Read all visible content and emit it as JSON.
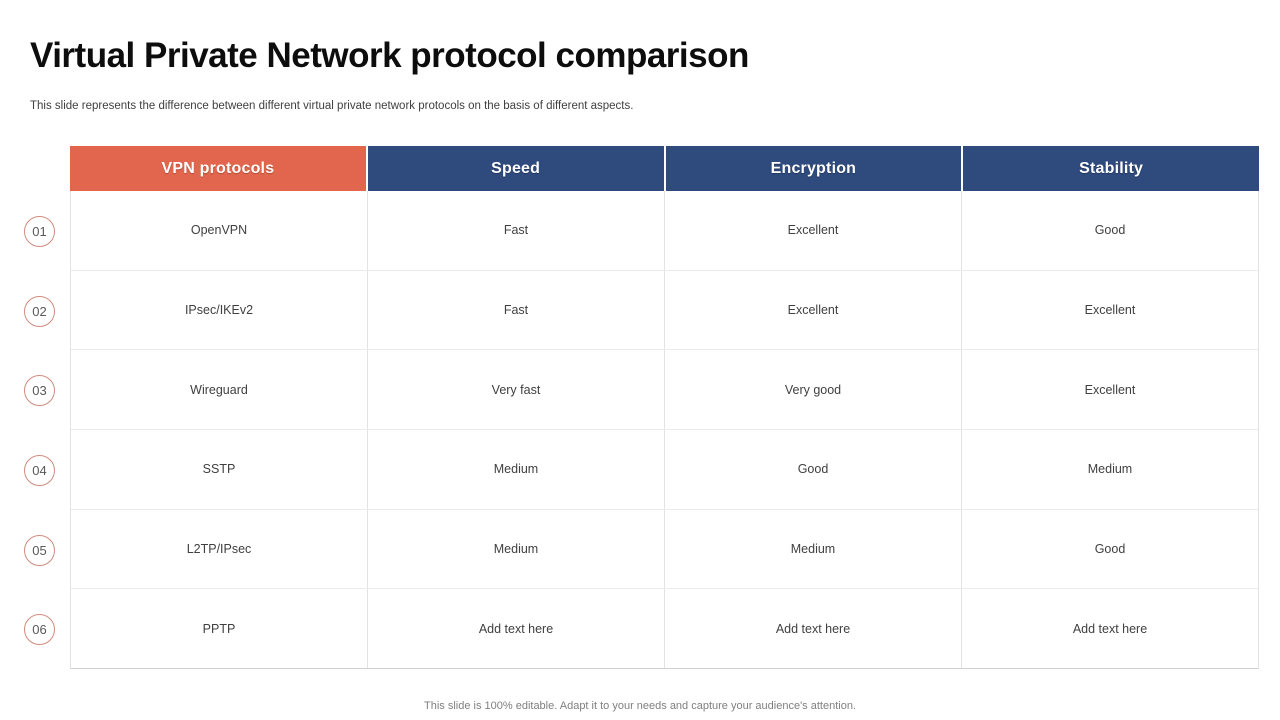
{
  "slide": {
    "title": "Virtual Private Network protocol comparison",
    "subtitle": "This slide represents the difference between  different virtual private network protocols on the basis of different aspects.",
    "footer": "This slide is 100% editable. Adapt it to your needs and capture your audience's attention."
  },
  "colors": {
    "protocol_header_bg": "#e2664d",
    "metric_header_bg": "#2f4a7d",
    "badge_outline": "#d08c7e",
    "grid_line": "#e3e3e3",
    "cell_text": "#404040",
    "footer_text": "#7f7f7f"
  },
  "table": {
    "headers": {
      "protocol": "VPN protocols",
      "speed": "Speed",
      "encryption": "Encryption",
      "stability": "Stability"
    },
    "rows": [
      {
        "num": "01",
        "protocol": "OpenVPN",
        "speed": "Fast",
        "encryption": "Excellent",
        "stability": "Good"
      },
      {
        "num": "02",
        "protocol": "IPsec/IKEv2",
        "speed": "Fast",
        "encryption": "Excellent",
        "stability": "Excellent"
      },
      {
        "num": "03",
        "protocol": "Wireguard",
        "speed": "Very fast",
        "encryption": "Very good",
        "stability": "Excellent"
      },
      {
        "num": "04",
        "protocol": "SSTP",
        "speed": "Medium",
        "encryption": "Good",
        "stability": "Medium"
      },
      {
        "num": "05",
        "protocol": "L2TP/IPsec",
        "speed": "Medium",
        "encryption": "Medium",
        "stability": "Good"
      },
      {
        "num": "06",
        "protocol": "PPTP",
        "speed": "Add text here",
        "encryption": "Add text here",
        "stability": "Add text here"
      }
    ]
  }
}
